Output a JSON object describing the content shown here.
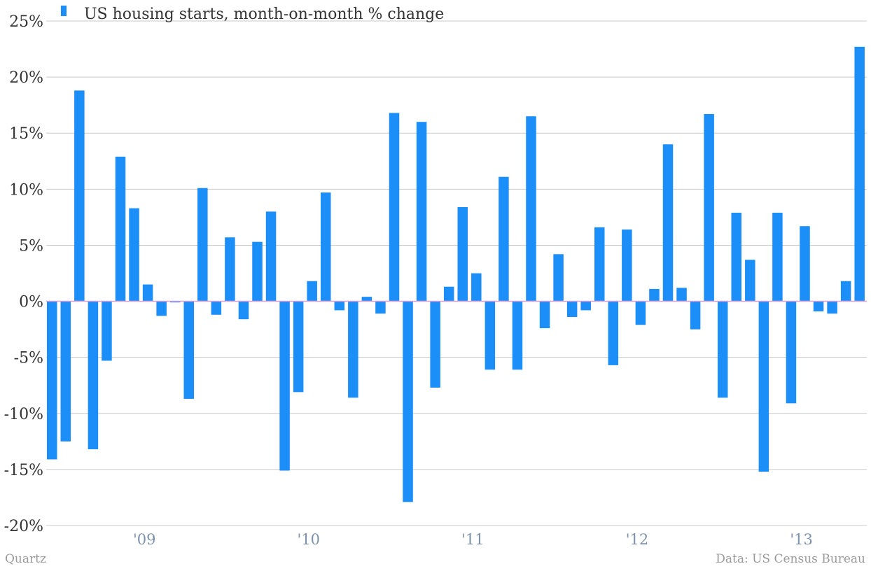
{
  "colors": {
    "bar": "#1c8ef8",
    "zero_line": "#e79ad2",
    "grid": "#c8c8c8",
    "axis_text": "#333333",
    "x_tick_text": "#7d92aa"
  },
  "footer": {
    "credit": "Quartz",
    "source": "Data: US Census Bureau"
  },
  "chart_data": {
    "type": "bar",
    "legend": {
      "label": "US housing starts, month-on-month % change",
      "position": "top-left"
    },
    "y_axis": {
      "range": [
        -20,
        25
      ],
      "ticks": [
        25,
        20,
        15,
        10,
        5,
        0,
        -5,
        -10,
        -15,
        -20
      ],
      "tick_labels": [
        "25%",
        "20%",
        "15%",
        "10%",
        "5%",
        "0%",
        "-5%",
        "-10%",
        "-15%",
        "-20%"
      ]
    },
    "x_axis": {
      "tick_labels": [
        "'09",
        "'10",
        "'11",
        "'12",
        "'13"
      ],
      "tick_bar_index": [
        6.75,
        18.75,
        30.75,
        42.75,
        54.75
      ]
    },
    "grid": true,
    "series": [
      {
        "values": [
          -14.1,
          -12.5,
          18.8,
          -13.2,
          -5.3,
          12.9,
          8.3,
          1.5,
          -1.3,
          -0.1,
          -8.7,
          10.1,
          -1.2,
          5.7,
          -1.6,
          5.3,
          8.0,
          -15.1,
          -8.1,
          1.8,
          9.7,
          -0.8,
          -8.6,
          0.4,
          -1.1,
          16.8,
          -17.9,
          16.0,
          -7.7,
          1.3,
          8.4,
          2.5,
          -6.1,
          11.1,
          -6.1,
          16.5,
          -2.4,
          4.2,
          -1.4,
          -0.8,
          6.6,
          -5.7,
          6.4,
          -2.1,
          1.1,
          14.0,
          1.2,
          -2.5,
          16.7,
          -8.6,
          7.9,
          3.7,
          -15.2,
          7.9,
          -9.1,
          6.7,
          -0.9,
          -1.1,
          1.8,
          22.7
        ]
      }
    ]
  }
}
